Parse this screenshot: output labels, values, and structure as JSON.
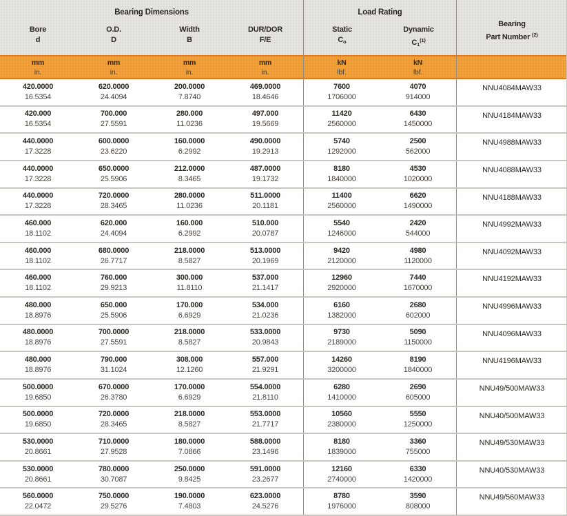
{
  "colors": {
    "accent_orange": "#F2A03A",
    "orange_border": "#E07820",
    "header_gray": "#E6E4E1",
    "separator": "#C9C6C1",
    "divider": "#908D88",
    "text_dark": "#2B2823",
    "text_regular": "#45413B"
  },
  "table": {
    "header": {
      "group_dimensions": "Bearing Dimensions",
      "group_load": "Load Rating",
      "part_header": {
        "line1": "Bearing",
        "line2": "Part Number",
        "sup": "(2)"
      },
      "columns": [
        {
          "name": "Bore",
          "symbol": "d"
        },
        {
          "name": "O.D.",
          "symbol": "D"
        },
        {
          "name": "Width",
          "symbol": "B"
        },
        {
          "name": "DUR/DOR",
          "symbol": "F/E"
        },
        {
          "name": "Static",
          "symbol_main": "C",
          "symbol_sub": "o"
        },
        {
          "name": "Dynamic",
          "symbol_main": "C",
          "symbol_sub": "1",
          "symbol_sup": "(1)"
        }
      ],
      "units": [
        {
          "top": "mm",
          "bottom": "in."
        },
        {
          "top": "mm",
          "bottom": "in."
        },
        {
          "top": "mm",
          "bottom": "in."
        },
        {
          "top": "mm",
          "bottom": "in."
        },
        {
          "top": "kN",
          "bottom": "lbf."
        },
        {
          "top": "kN",
          "bottom": "lbf."
        }
      ]
    },
    "rows": [
      {
        "bore_mm": "420.0000",
        "bore_in": "16.5354",
        "od_mm": "620.0000",
        "od_in": "24.4094",
        "width_mm": "200.0000",
        "width_in": "7.8740",
        "dur_mm": "469.0000",
        "dur_in": "18.4646",
        "static_kn": "7600",
        "static_lbf": "1706000",
        "dynamic_kn": "4070",
        "dynamic_lbf": "914000",
        "part_number": "NNU4084MAW33"
      },
      {
        "bore_mm": "420.000",
        "bore_in": "16.5354",
        "od_mm": "700.000",
        "od_in": "27.5591",
        "width_mm": "280.000",
        "width_in": "11.0236",
        "dur_mm": "497.000",
        "dur_in": "19.5669",
        "static_kn": "11420",
        "static_lbf": "2560000",
        "dynamic_kn": "6430",
        "dynamic_lbf": "1450000",
        "part_number": "NNU4184MAW33"
      },
      {
        "bore_mm": "440.0000",
        "bore_in": "17.3228",
        "od_mm": "600.0000",
        "od_in": "23.6220",
        "width_mm": "160.0000",
        "width_in": "6.2992",
        "dur_mm": "490.0000",
        "dur_in": "19.2913",
        "static_kn": "5740",
        "static_lbf": "1292000",
        "dynamic_kn": "2500",
        "dynamic_lbf": "562000",
        "part_number": "NNU4988MAW33"
      },
      {
        "bore_mm": "440.0000",
        "bore_in": "17.3228",
        "od_mm": "650.0000",
        "od_in": "25.5906",
        "width_mm": "212.0000",
        "width_in": "8.3465",
        "dur_mm": "487.0000",
        "dur_in": "19.1732",
        "static_kn": "8180",
        "static_lbf": "1840000",
        "dynamic_kn": "4530",
        "dynamic_lbf": "1020000",
        "part_number": "NNU4088MAW33"
      },
      {
        "bore_mm": "440.0000",
        "bore_in": "17.3228",
        "od_mm": "720.0000",
        "od_in": "28.3465",
        "width_mm": "280.0000",
        "width_in": "11.0236",
        "dur_mm": "511.0000",
        "dur_in": "20.1181",
        "static_kn": "11400",
        "static_lbf": "2560000",
        "dynamic_kn": "6620",
        "dynamic_lbf": "1490000",
        "part_number": "NNU4188MAW33"
      },
      {
        "bore_mm": "460.000",
        "bore_in": "18.1102",
        "od_mm": "620.000",
        "od_in": "24.4094",
        "width_mm": "160.000",
        "width_in": "6.2992",
        "dur_mm": "510.000",
        "dur_in": "20.0787",
        "static_kn": "5540",
        "static_lbf": "1246000",
        "dynamic_kn": "2420",
        "dynamic_lbf": "544000",
        "part_number": "NNU4992MAW33"
      },
      {
        "bore_mm": "460.000",
        "bore_in": "18.1102",
        "od_mm": "680.0000",
        "od_in": "26.7717",
        "width_mm": "218.0000",
        "width_in": "8.5827",
        "dur_mm": "513.0000",
        "dur_in": "20.1969",
        "static_kn": "9420",
        "static_lbf": "2120000",
        "dynamic_kn": "4980",
        "dynamic_lbf": "1120000",
        "part_number": "NNU4092MAW33"
      },
      {
        "bore_mm": "460.000",
        "bore_in": "18.1102",
        "od_mm": "760.000",
        "od_in": "29.9213",
        "width_mm": "300.000",
        "width_in": "11.8110",
        "dur_mm": "537.000",
        "dur_in": "21.1417",
        "static_kn": "12960",
        "static_lbf": "2920000",
        "dynamic_kn": "7440",
        "dynamic_lbf": "1670000",
        "part_number": "NNU4192MAW33"
      },
      {
        "bore_mm": "480.000",
        "bore_in": "18.8976",
        "od_mm": "650.000",
        "od_in": "25.5906",
        "width_mm": "170.000",
        "width_in": "6.6929",
        "dur_mm": "534.000",
        "dur_in": "21.0236",
        "static_kn": "6160",
        "static_lbf": "1382000",
        "dynamic_kn": "2680",
        "dynamic_lbf": "602000",
        "part_number": "NNU4996MAW33"
      },
      {
        "bore_mm": "480.0000",
        "bore_in": "18.8976",
        "od_mm": "700.0000",
        "od_in": "27.5591",
        "width_mm": "218.0000",
        "width_in": "8.5827",
        "dur_mm": "533.0000",
        "dur_in": "20.9843",
        "static_kn": "9730",
        "static_lbf": "2189000",
        "dynamic_kn": "5090",
        "dynamic_lbf": "1150000",
        "part_number": "NNU4096MAW33"
      },
      {
        "bore_mm": "480.000",
        "bore_in": "18.8976",
        "od_mm": "790.000",
        "od_in": "31.1024",
        "width_mm": "308.000",
        "width_in": "12.1260",
        "dur_mm": "557.000",
        "dur_in": "21.9291",
        "static_kn": "14260",
        "static_lbf": "3200000",
        "dynamic_kn": "8190",
        "dynamic_lbf": "1840000",
        "part_number": "NNU4196MAW33"
      },
      {
        "bore_mm": "500.0000",
        "bore_in": "19.6850",
        "od_mm": "670.0000",
        "od_in": "26.3780",
        "width_mm": "170.0000",
        "width_in": "6.6929",
        "dur_mm": "554.0000",
        "dur_in": "21.8110",
        "static_kn": "6280",
        "static_lbf": "1410000",
        "dynamic_kn": "2690",
        "dynamic_lbf": "605000",
        "part_number": "NNU49/500MAW33"
      },
      {
        "bore_mm": "500.0000",
        "bore_in": "19.6850",
        "od_mm": "720.0000",
        "od_in": "28.3465",
        "width_mm": "218.0000",
        "width_in": "8.5827",
        "dur_mm": "553.0000",
        "dur_in": "21.7717",
        "static_kn": "10560",
        "static_lbf": "2380000",
        "dynamic_kn": "5550",
        "dynamic_lbf": "1250000",
        "part_number": "NNU40/500MAW33"
      },
      {
        "bore_mm": "530.0000",
        "bore_in": "20.8661",
        "od_mm": "710.0000",
        "od_in": "27.9528",
        "width_mm": "180.0000",
        "width_in": "7.0866",
        "dur_mm": "588.0000",
        "dur_in": "23.1496",
        "static_kn": "8180",
        "static_lbf": "1839000",
        "dynamic_kn": "3360",
        "dynamic_lbf": "755000",
        "part_number": "NNU49/530MAW33"
      },
      {
        "bore_mm": "530.0000",
        "bore_in": "20.8661",
        "od_mm": "780.0000",
        "od_in": "30.7087",
        "width_mm": "250.0000",
        "width_in": "9.8425",
        "dur_mm": "591.0000",
        "dur_in": "23.2677",
        "static_kn": "12160",
        "static_lbf": "2740000",
        "dynamic_kn": "6330",
        "dynamic_lbf": "1420000",
        "part_number": "NNU40/530MAW33"
      },
      {
        "bore_mm": "560.0000",
        "bore_in": "22.0472",
        "od_mm": "750.0000",
        "od_in": "29.5276",
        "width_mm": "190.0000",
        "width_in": "7.4803",
        "dur_mm": "623.0000",
        "dur_in": "24.5276",
        "static_kn": "8780",
        "static_lbf": "1976000",
        "dynamic_kn": "3590",
        "dynamic_lbf": "808000",
        "part_number": "NNU49/560MAW33"
      }
    ]
  }
}
